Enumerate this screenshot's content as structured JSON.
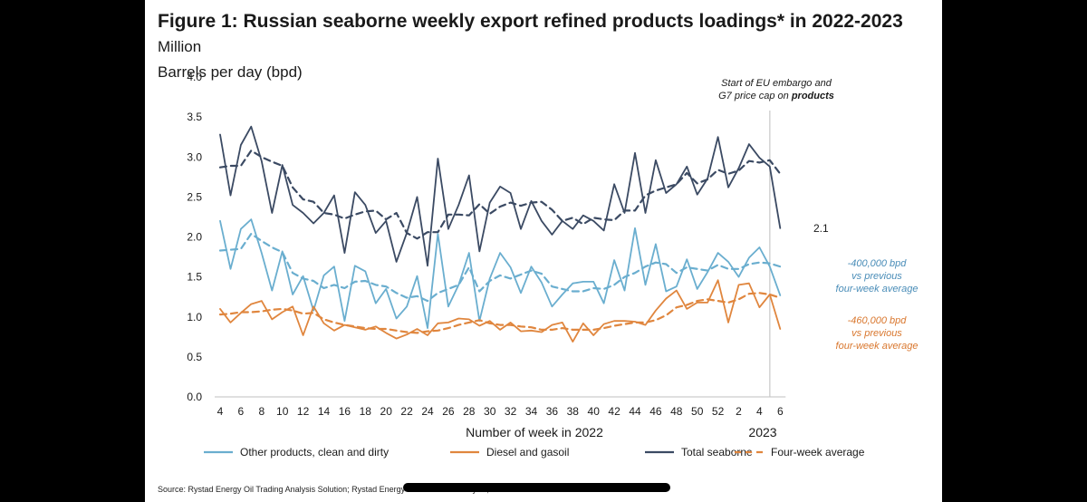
{
  "title": {
    "main": "Figure 1: Russian seaborne weekly export refined products loadings* in 2022-2023",
    "unit_part1": "Million",
    "unit_part2": "Barrels per day (bpd)"
  },
  "annotations": {
    "embargo_line1": "Start of EU embargo and",
    "embargo_line2_pre": "G7 price cap on",
    "embargo_line2_bold": "products",
    "total_end_label": "2.1",
    "other_note": [
      "-400,000 bpd",
      "vs previous",
      "four-week average"
    ],
    "diesel_note": [
      "-460,000 bpd",
      "vs previous",
      "four-week average"
    ],
    "year_2023": "2023"
  },
  "source": "Source: Rystad Energy Oil Trading Analysis Solution; Rystad Energy research and analysis; Vortexa",
  "colors": {
    "total": "#3b4a63",
    "other": "#6aaecf",
    "diesel": "#e0863e",
    "other_note": "#4a8db8",
    "diesel_note": "#d9772e"
  },
  "chart_data": {
    "type": "line",
    "title": "Figure 1: Russian seaborne weekly export refined products loadings* in 2022-2023",
    "xlabel": "Number of week in 2022",
    "ylabel": "Million Barrels per day (bpd)",
    "ylim": [
      0,
      4
    ],
    "yticks": [
      "0.0",
      "0.5",
      "1.0",
      "1.5",
      "2.0",
      "2.5",
      "3.0",
      "3.5",
      "4.0"
    ],
    "x": [
      "4",
      "5",
      "6",
      "7",
      "8",
      "9",
      "10",
      "11",
      "12",
      "13",
      "14",
      "15",
      "16",
      "17",
      "18",
      "19",
      "20",
      "21",
      "22",
      "23",
      "24",
      "25",
      "26",
      "27",
      "28",
      "29",
      "30",
      "31",
      "32",
      "33",
      "34",
      "35",
      "36",
      "37",
      "38",
      "39",
      "40",
      "41",
      "42",
      "43",
      "44",
      "45",
      "46",
      "47",
      "48",
      "49",
      "50",
      "51",
      "52",
      "1",
      "2",
      "3",
      "4",
      "5",
      "6"
    ],
    "xticks_shown": [
      "4",
      "6",
      "8",
      "10",
      "12",
      "14",
      "16",
      "18",
      "20",
      "22",
      "24",
      "26",
      "28",
      "30",
      "32",
      "34",
      "36",
      "38",
      "40",
      "42",
      "44",
      "46",
      "48",
      "50",
      "52",
      "2",
      "4",
      "6"
    ],
    "embargo_week_index": 53,
    "series": [
      {
        "name": "Total seaborne",
        "style": "solid",
        "color_key": "total",
        "values": [
          3.28,
          2.52,
          3.15,
          3.38,
          2.95,
          2.3,
          2.9,
          2.4,
          2.3,
          2.17,
          2.3,
          2.52,
          1.8,
          2.56,
          2.4,
          2.05,
          2.2,
          1.69,
          2.05,
          2.5,
          1.64,
          2.98,
          2.1,
          2.4,
          2.77,
          1.82,
          2.43,
          2.63,
          2.55,
          2.1,
          2.45,
          2.2,
          2.03,
          2.2,
          2.1,
          2.27,
          2.2,
          2.08,
          2.66,
          2.3,
          3.05,
          2.3,
          2.96,
          2.55,
          2.66,
          2.88,
          2.53,
          2.73,
          3.25,
          2.62,
          2.86,
          3.16,
          2.99,
          2.88,
          2.11
        ]
      },
      {
        "name": "Four-week average (Total seaborne)",
        "style": "dashed",
        "color_key": "total",
        "values": [
          2.87,
          2.89,
          2.89,
          3.08,
          3.0,
          2.94,
          2.89,
          2.62,
          2.47,
          2.44,
          2.3,
          2.28,
          2.23,
          2.28,
          2.32,
          2.33,
          2.22,
          2.3,
          2.05,
          1.98,
          2.06,
          2.06,
          2.28,
          2.28,
          2.27,
          2.41,
          2.29,
          2.38,
          2.43,
          2.39,
          2.43,
          2.44,
          2.34,
          2.2,
          2.24,
          2.16,
          2.24,
          2.22,
          2.21,
          2.33,
          2.33,
          2.52,
          2.58,
          2.62,
          2.66,
          2.8,
          2.67,
          2.72,
          2.84,
          2.79,
          2.83,
          2.95,
          2.93,
          2.96,
          2.79
        ]
      },
      {
        "name": "Other products, clean and dirty",
        "style": "solid",
        "color_key": "other",
        "values": [
          2.2,
          1.6,
          2.1,
          2.22,
          1.8,
          1.33,
          1.82,
          1.28,
          1.51,
          1.08,
          1.52,
          1.63,
          0.95,
          1.64,
          1.57,
          1.17,
          1.35,
          0.98,
          1.13,
          1.51,
          0.86,
          2.04,
          1.13,
          1.4,
          1.8,
          0.95,
          1.48,
          1.8,
          1.62,
          1.3,
          1.63,
          1.43,
          1.13,
          1.28,
          1.42,
          1.44,
          1.44,
          1.17,
          1.71,
          1.33,
          2.11,
          1.4,
          1.91,
          1.32,
          1.38,
          1.72,
          1.35,
          1.56,
          1.8,
          1.69,
          1.5,
          1.74,
          1.87,
          1.63,
          1.27
        ]
      },
      {
        "name": "Four-week average (Other products)",
        "style": "dashed",
        "color_key": "other",
        "values": [
          1.83,
          1.84,
          1.85,
          2.04,
          1.95,
          1.87,
          1.81,
          1.55,
          1.48,
          1.45,
          1.36,
          1.4,
          1.36,
          1.44,
          1.45,
          1.4,
          1.38,
          1.3,
          1.24,
          1.26,
          1.2,
          1.3,
          1.35,
          1.4,
          1.62,
          1.32,
          1.45,
          1.52,
          1.48,
          1.53,
          1.58,
          1.54,
          1.38,
          1.35,
          1.32,
          1.32,
          1.36,
          1.35,
          1.4,
          1.5,
          1.55,
          1.63,
          1.68,
          1.66,
          1.55,
          1.62,
          1.6,
          1.58,
          1.65,
          1.6,
          1.6,
          1.66,
          1.68,
          1.67,
          1.63
        ]
      },
      {
        "name": "Diesel and gasoil",
        "style": "solid",
        "color_key": "diesel",
        "values": [
          1.1,
          0.93,
          1.05,
          1.16,
          1.2,
          0.97,
          1.06,
          1.13,
          0.77,
          1.13,
          0.92,
          0.83,
          0.9,
          0.87,
          0.84,
          0.88,
          0.8,
          0.73,
          0.78,
          0.85,
          0.77,
          0.92,
          0.93,
          0.98,
          0.97,
          0.89,
          0.95,
          0.84,
          0.93,
          0.82,
          0.83,
          0.81,
          0.9,
          0.93,
          0.69,
          0.92,
          0.77,
          0.91,
          0.95,
          0.95,
          0.94,
          0.9,
          1.08,
          1.23,
          1.33,
          1.1,
          1.18,
          1.18,
          1.46,
          0.93,
          1.4,
          1.42,
          1.12,
          1.28,
          0.85
        ]
      },
      {
        "name": "Four-week average (Diesel)",
        "style": "dashed",
        "color_key": "diesel",
        "values": [
          1.03,
          1.04,
          1.06,
          1.06,
          1.07,
          1.09,
          1.1,
          1.08,
          1.04,
          1.05,
          0.97,
          0.93,
          0.9,
          0.88,
          0.86,
          0.85,
          0.85,
          0.83,
          0.81,
          0.8,
          0.82,
          0.83,
          0.86,
          0.9,
          0.93,
          0.96,
          0.92,
          0.9,
          0.9,
          0.88,
          0.87,
          0.84,
          0.84,
          0.86,
          0.84,
          0.84,
          0.84,
          0.86,
          0.89,
          0.91,
          0.93,
          0.93,
          0.96,
          1.02,
          1.12,
          1.15,
          1.2,
          1.22,
          1.2,
          1.18,
          1.22,
          1.29,
          1.3,
          1.28,
          1.24
        ]
      }
    ],
    "legend": [
      {
        "label": "Other products, clean and dirty",
        "color_key": "other",
        "style": "solid"
      },
      {
        "label": "Diesel and gasoil",
        "color_key": "diesel",
        "style": "solid"
      },
      {
        "label": "Total seaborne",
        "color_key": "total",
        "style": "solid"
      },
      {
        "label": "Four-week average",
        "color_key": "diesel",
        "style": "dashed"
      }
    ]
  }
}
